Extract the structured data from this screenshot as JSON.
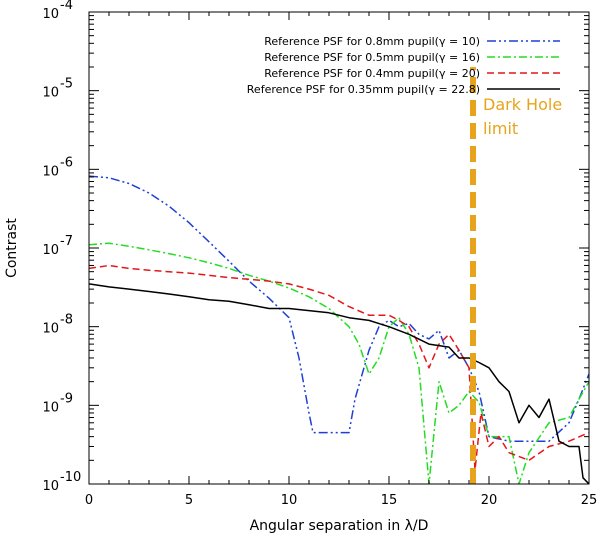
{
  "chart_data": {
    "type": "line",
    "title": "",
    "xlabel": "Angular separation in λ/D",
    "ylabel": "Contrast",
    "xlim": [
      0,
      25
    ],
    "ylim_log10": [
      -10,
      -4
    ],
    "x_ticks": [
      0,
      5,
      10,
      15,
      20,
      25
    ],
    "x_tick_labels": [
      "0",
      "5",
      "10",
      "15",
      "20",
      "25"
    ],
    "y_ticks_log10": [
      -10,
      -9,
      -8,
      -7,
      -6,
      -5,
      -4
    ],
    "y_tick_labels": [
      {
        "base": "10",
        "exp": "-10"
      },
      {
        "base": "10",
        "exp": "-9"
      },
      {
        "base": "10",
        "exp": "-8"
      },
      {
        "base": "10",
        "exp": "-7"
      },
      {
        "base": "10",
        "exp": "-6"
      },
      {
        "base": "10",
        "exp": "-5"
      },
      {
        "base": "10",
        "exp": "-4"
      }
    ],
    "legend_position": "top-right",
    "series": [
      {
        "name": "Reference PSF for 0.8mm pupil(γ = 10)",
        "color": "#1f3fd6",
        "dash": "dash-dot-dot",
        "x": [
          0,
          1,
          2,
          3,
          4,
          5,
          6,
          7,
          8,
          9,
          10,
          10.5,
          11,
          11.2,
          13,
          13.3,
          14,
          14.5,
          15,
          15.5,
          16,
          16.5,
          17,
          17.5,
          18,
          18.5,
          19,
          19.5,
          20,
          21,
          22,
          23,
          24,
          24.5,
          25
        ],
        "y": [
          8.2e-07,
          7.8e-07,
          6.6e-07,
          5e-07,
          3.4e-07,
          2.1e-07,
          1.2e-07,
          6.8e-08,
          3.8e-08,
          2.3e-08,
          1.3e-08,
          4e-09,
          8e-10,
          4.5e-10,
          4.5e-10,
          1.2e-09,
          5e-09,
          1e-08,
          1.2e-08,
          1e-08,
          1.1e-08,
          8e-09,
          7e-09,
          9e-09,
          4e-09,
          5e-09,
          3e-09,
          1.5e-09,
          4e-10,
          3.5e-10,
          3.5e-10,
          3.5e-10,
          6e-10,
          1.2e-09,
          2.5e-09
        ]
      },
      {
        "name": "Reference PSF for 0.5mm pupil(γ = 16)",
        "color": "#22dd22",
        "dash": "dash-dot",
        "x": [
          0,
          1,
          2,
          3,
          4,
          5,
          6,
          7,
          8,
          9,
          10,
          11,
          12,
          13,
          13.5,
          14,
          14.5,
          15,
          15.5,
          16,
          16.5,
          17,
          17.5,
          18,
          18.5,
          19,
          19.5,
          20,
          20.5,
          21,
          21.5,
          22,
          23,
          24,
          24.5,
          25
        ],
        "y": [
          1.1e-07,
          1.15e-07,
          1.05e-07,
          9.5e-08,
          8.5e-08,
          7.5e-08,
          6.5e-08,
          5.5e-08,
          4.5e-08,
          3.8e-08,
          3.1e-08,
          2.4e-08,
          1.7e-08,
          1e-08,
          6e-09,
          2.5e-09,
          4e-09,
          1e-08,
          1.3e-08,
          8e-09,
          3e-09,
          1e-10,
          2e-09,
          8e-10,
          1e-09,
          1.5e-09,
          1.1e-09,
          4e-10,
          4e-10,
          4e-10,
          1e-10,
          2.5e-10,
          6e-10,
          7e-10,
          1.2e-09,
          2e-09
        ]
      },
      {
        "name": "Reference PSF for 0.4mm pupil(γ = 20)",
        "color": "#e3171a",
        "dash": "dashed",
        "x": [
          0,
          1,
          2,
          3,
          4,
          5,
          6,
          7,
          8,
          9,
          10,
          11,
          12,
          13,
          14,
          15,
          15.5,
          16,
          16.5,
          17,
          17.5,
          18,
          18.5,
          19,
          19.3,
          19.6,
          20,
          20.5,
          21,
          22,
          23,
          24,
          25
        ],
        "y": [
          5.5e-08,
          6e-08,
          5.5e-08,
          5.2e-08,
          5e-08,
          4.8e-08,
          4.5e-08,
          4.2e-08,
          4e-08,
          3.8e-08,
          3.5e-08,
          3e-08,
          2.5e-08,
          1.8e-08,
          1.4e-08,
          1.4e-08,
          1.2e-08,
          1e-08,
          6e-09,
          3e-09,
          6e-09,
          8e-09,
          5e-09,
          3e-09,
          1.5e-10,
          8e-10,
          3e-10,
          4e-10,
          2.5e-10,
          2e-10,
          3e-10,
          3.5e-10,
          4.5e-10
        ]
      },
      {
        "name": "Reference PSF for 0.35mm pupil(γ = 22.8)",
        "color": "#000000",
        "dash": "solid",
        "x": [
          0,
          1,
          2,
          3,
          4,
          5,
          6,
          7,
          8,
          9,
          10,
          11,
          12,
          13,
          14,
          15,
          16,
          17,
          18,
          18.5,
          19,
          19.5,
          20,
          20.5,
          21,
          21.5,
          22,
          22.5,
          23,
          23.5,
          24,
          24.5,
          24.7,
          25
        ],
        "y": [
          3.5e-08,
          3.2e-08,
          3e-08,
          2.8e-08,
          2.6e-08,
          2.4e-08,
          2.2e-08,
          2.1e-08,
          1.9e-08,
          1.7e-08,
          1.7e-08,
          1.6e-08,
          1.5e-08,
          1.3e-08,
          1.2e-08,
          1e-08,
          8e-09,
          6e-09,
          5.5e-09,
          4e-09,
          4e-09,
          3.5e-09,
          3e-09,
          2e-09,
          1.5e-09,
          6e-10,
          1e-09,
          7e-10,
          1.2e-09,
          3.5e-10,
          3e-10,
          3e-10,
          1.2e-10,
          1e-10
        ]
      }
    ],
    "annotations": [
      {
        "type": "vline",
        "x": 19.2,
        "color": "#e8a31c",
        "dash": "long-dash",
        "label_lines": [
          "Dark Hole",
          "limit"
        ]
      }
    ]
  }
}
